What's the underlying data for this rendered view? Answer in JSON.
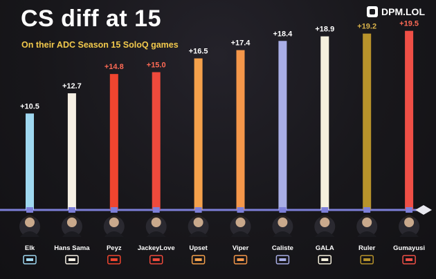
{
  "header": {
    "title": "CS diff at 15",
    "subtitle": "On their ADC Season 15 SoloQ games",
    "brand": "DPM.LOL"
  },
  "colors": {
    "background": "#18171b",
    "axis": "#7d7fd8",
    "subtitle": "#f2c94c"
  },
  "chart_data": {
    "type": "bar",
    "title": "CS diff at 15",
    "subtitle": "On their ADC Season 15 SoloQ games",
    "categories": [
      "Elk",
      "Hans Sama",
      "Peyz",
      "JackeyLove",
      "Upset",
      "Viper",
      "Caliste",
      "GALA",
      "Ruler",
      "Gumayusi"
    ],
    "values": [
      10.5,
      12.7,
      14.8,
      15.0,
      16.5,
      17.4,
      18.4,
      18.9,
      19.2,
      19.5
    ],
    "labels": [
      "+10.5",
      "+12.7",
      "+14.8",
      "+15.0",
      "+16.5",
      "+17.4",
      "+18.4",
      "+18.9",
      "+19.2",
      "+19.5"
    ],
    "bar_colors": [
      "#9fd8f0",
      "#f6f0e4",
      "#f0452f",
      "#ee4a3c",
      "#f5a14b",
      "#f5974a",
      "#a9aee6",
      "#f5f0dd",
      "#b8932b",
      "#ef4f46"
    ],
    "team_icons": [
      "blg-icon",
      "g2-icon",
      "jdg-icon",
      "al-icon",
      "fnatic-icon",
      "hle-icon",
      "kc-icon",
      "ig-icon",
      "geng-icon",
      "t1-icon"
    ],
    "ylim": [
      0,
      20
    ],
    "grid": false,
    "legend": "none"
  }
}
